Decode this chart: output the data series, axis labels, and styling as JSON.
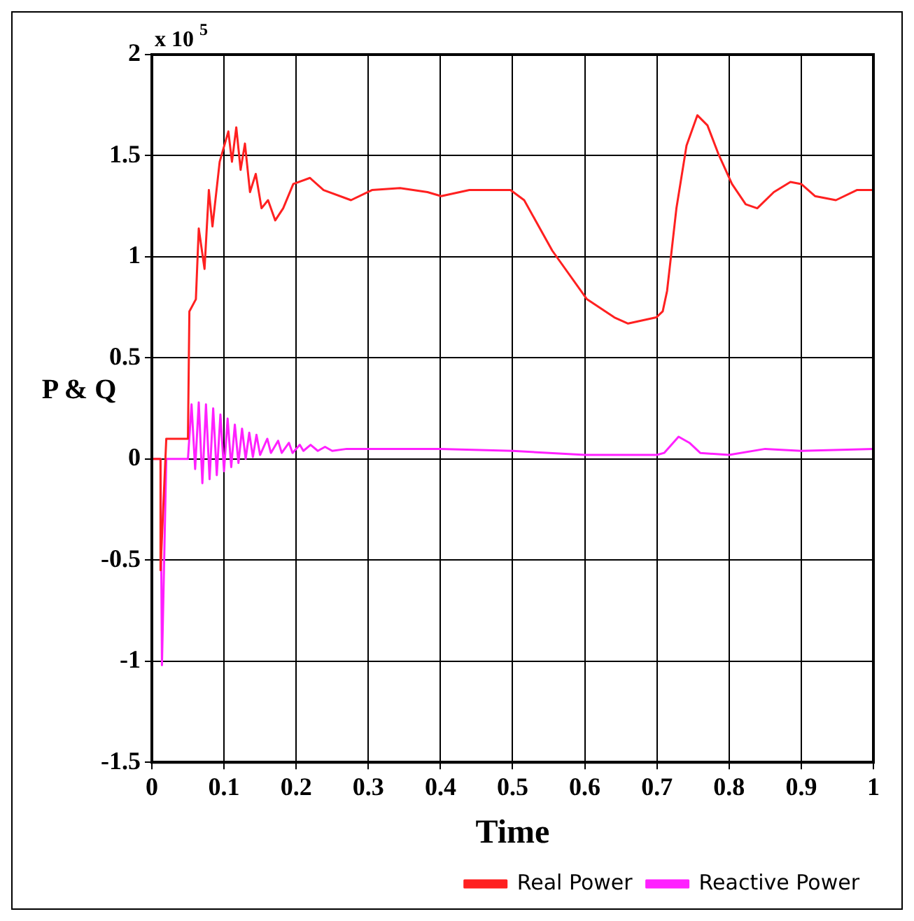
{
  "chart_data": {
    "type": "line",
    "xlabel": "Time",
    "ylabel": "P & Q",
    "annotations": [
      "x 10$^{5}$"
    ],
    "xlim": [
      0,
      1
    ],
    "xticks": [
      0,
      0.1,
      0.2,
      0.3,
      0.4,
      0.5,
      0.6,
      0.7,
      0.8,
      0.9,
      1
    ],
    "ylim": [
      -1.5,
      2
    ],
    "yticks": [
      -1.5,
      -1,
      -0.5,
      0,
      0.5,
      1,
      1.5,
      2
    ],
    "grid": true,
    "legend": "bottom right",
    "marker": "none",
    "line_style": "solid",
    "series": [
      {
        "name": "Real Power",
        "color": "#ff2020",
        "x": [
          0,
          0.012,
          0.012,
          0.02,
          0.05,
          0.052,
          0.061,
          0.065,
          0.073,
          0.079,
          0.084,
          0.094,
          0.106,
          0.111,
          0.117,
          0.123,
          0.129,
          0.136,
          0.144,
          0.152,
          0.161,
          0.171,
          0.182,
          0.196,
          0.219,
          0.238,
          0.276,
          0.305,
          0.344,
          0.382,
          0.401,
          0.44,
          0.497,
          0.516,
          0.555,
          0.603,
          0.641,
          0.66,
          0.699,
          0.708,
          0.714,
          0.727,
          0.741,
          0.756,
          0.77,
          0.785,
          0.804,
          0.823,
          0.839,
          0.862,
          0.885,
          0.9,
          0.919,
          0.948,
          0.977,
          1
        ],
        "values": [
          0,
          0,
          -0.55,
          0.1,
          0.1,
          0.73,
          0.79,
          1.14,
          0.94,
          1.33,
          1.15,
          1.47,
          1.62,
          1.47,
          1.64,
          1.43,
          1.56,
          1.32,
          1.41,
          1.24,
          1.28,
          1.18,
          1.24,
          1.36,
          1.39,
          1.33,
          1.28,
          1.33,
          1.34,
          1.32,
          1.3,
          1.33,
          1.33,
          1.28,
          1.03,
          0.79,
          0.7,
          0.67,
          0.7,
          0.73,
          0.83,
          1.24,
          1.55,
          1.7,
          1.65,
          1.51,
          1.36,
          1.26,
          1.24,
          1.32,
          1.37,
          1.36,
          1.3,
          1.28,
          1.33,
          1.33
        ]
      },
      {
        "name": "Reactive Power",
        "color": "#ff20ff",
        "x": [
          0,
          0.012,
          0.014,
          0.02,
          0.05,
          0.055,
          0.06,
          0.065,
          0.07,
          0.075,
          0.08,
          0.085,
          0.09,
          0.095,
          0.1,
          0.105,
          0.11,
          0.115,
          0.12,
          0.125,
          0.13,
          0.135,
          0.14,
          0.145,
          0.15,
          0.16,
          0.165,
          0.175,
          0.18,
          0.19,
          0.195,
          0.205,
          0.21,
          0.22,
          0.23,
          0.24,
          0.25,
          0.27,
          0.3,
          0.4,
          0.5,
          0.6,
          0.7,
          0.71,
          0.73,
          0.745,
          0.76,
          0.8,
          0.85,
          0.9,
          1
        ],
        "values": [
          0,
          0,
          -1.02,
          0,
          0,
          0.27,
          -0.05,
          0.28,
          -0.12,
          0.27,
          -0.1,
          0.25,
          -0.08,
          0.22,
          -0.06,
          0.2,
          -0.04,
          0.17,
          -0.02,
          0.15,
          0,
          0.13,
          0.01,
          0.12,
          0.02,
          0.1,
          0.03,
          0.09,
          0.03,
          0.08,
          0.03,
          0.07,
          0.04,
          0.07,
          0.04,
          0.06,
          0.04,
          0.05,
          0.05,
          0.05,
          0.04,
          0.02,
          0.02,
          0.03,
          0.11,
          0.08,
          0.03,
          0.02,
          0.05,
          0.04,
          0.05
        ]
      }
    ]
  }
}
